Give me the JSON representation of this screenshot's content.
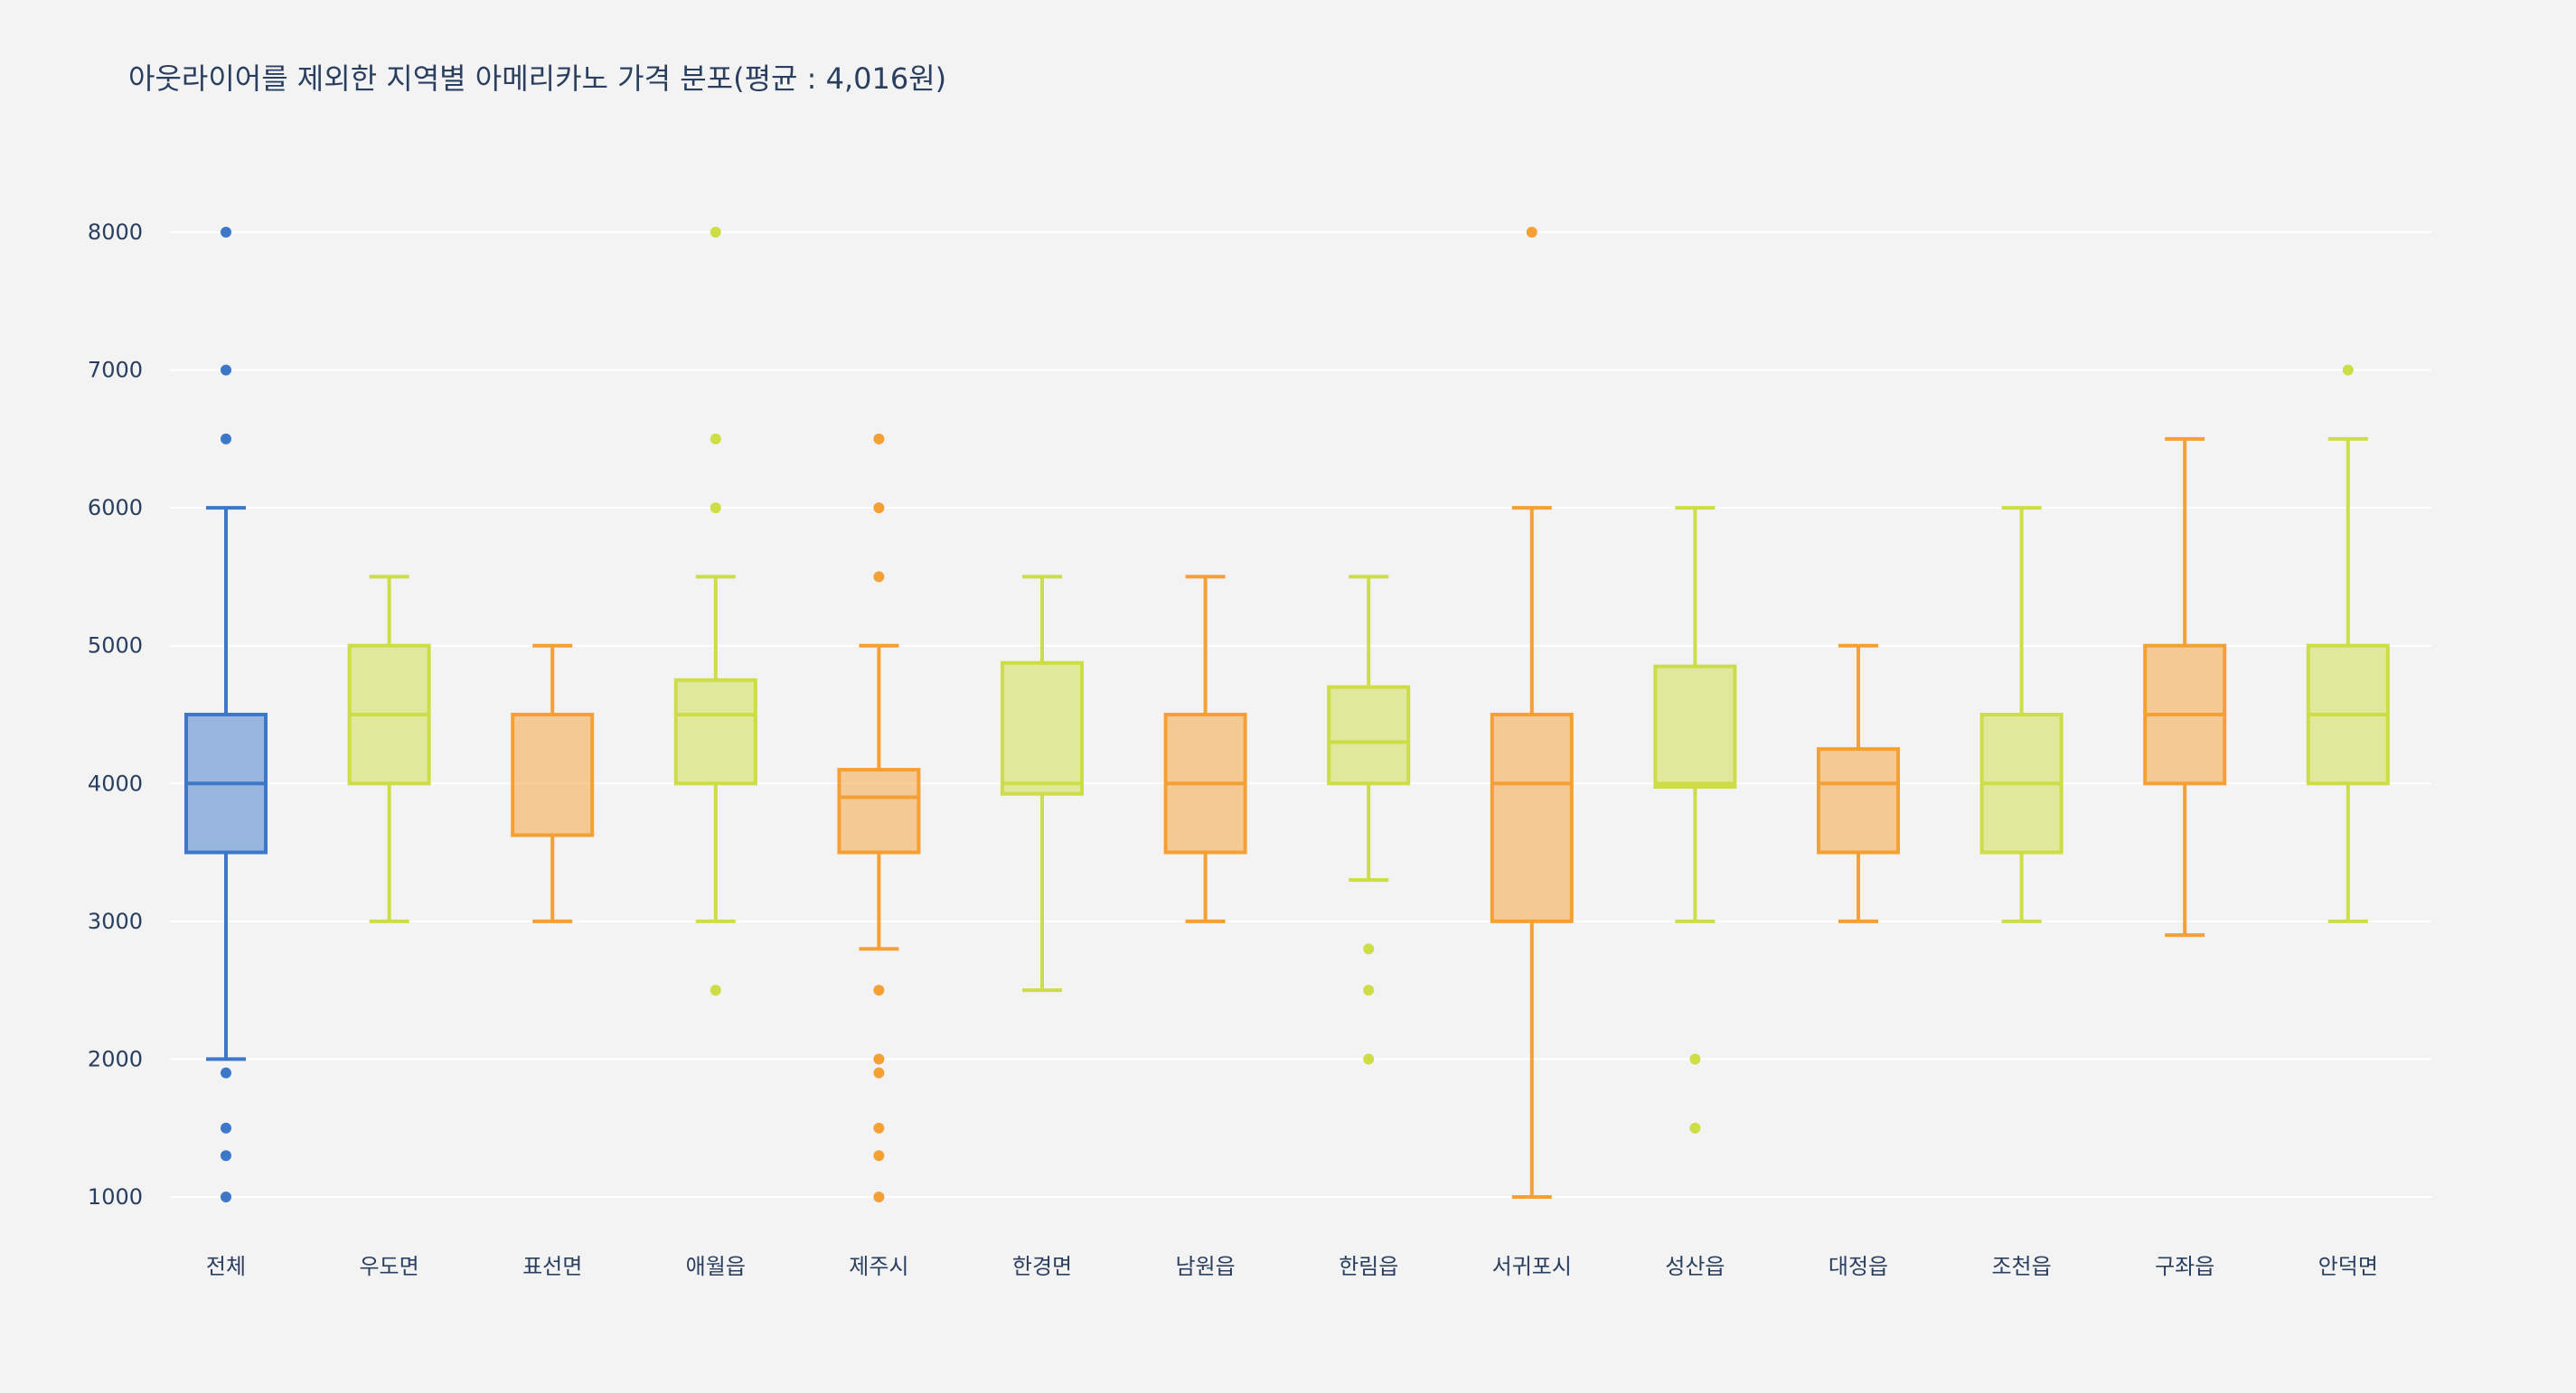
{
  "chart_data": {
    "type": "box",
    "title": "아웃라이어를 제외한 지역별 아메리카노 가격 분포(평균 : 4,016원)",
    "xlabel": "",
    "ylabel": "",
    "ylim": [
      1000,
      8000
    ],
    "yticks": [
      1000,
      2000,
      3000,
      4000,
      5000,
      6000,
      7000,
      8000
    ],
    "grid": true,
    "legend": "none",
    "colors": {
      "blue": "#3d78c8",
      "orange": "#f5a035",
      "lime": "#cddd45"
    },
    "categories": [
      "전체",
      "우도면",
      "표선면",
      "애월읍",
      "제주시",
      "한경면",
      "남원읍",
      "한림읍",
      "서귀포시",
      "성산읍",
      "대정읍",
      "조천읍",
      "구좌읍",
      "안덕면"
    ],
    "boxes": [
      {
        "category": "전체",
        "color": "blue",
        "whisker_low": 2000,
        "q1": 3500,
        "median": 4000,
        "q3": 4500,
        "whisker_high": 6000,
        "outliers": [
          8000,
          7000,
          6500,
          1900,
          1500,
          1300,
          1000
        ]
      },
      {
        "category": "우도면",
        "color": "lime",
        "whisker_low": 3000,
        "q1": 4000,
        "median": 4500,
        "q3": 5000,
        "whisker_high": 5500,
        "outliers": []
      },
      {
        "category": "표선면",
        "color": "orange",
        "whisker_low": 3000,
        "q1": 3625,
        "median": 4500,
        "q3": 4500,
        "whisker_high": 5000,
        "outliers": []
      },
      {
        "category": "애월읍",
        "color": "lime",
        "whisker_low": 3000,
        "q1": 4000,
        "median": 4500,
        "q3": 4750,
        "whisker_high": 5500,
        "outliers": [
          8000,
          6500,
          6000,
          2500
        ]
      },
      {
        "category": "제주시",
        "color": "orange",
        "whisker_low": 2800,
        "q1": 3500,
        "median": 3900,
        "q3": 4100,
        "whisker_high": 5000,
        "outliers": [
          6500,
          6000,
          5500,
          2500,
          2000,
          1900,
          1500,
          1300,
          1000
        ]
      },
      {
        "category": "한경면",
        "color": "lime",
        "whisker_low": 2500,
        "q1": 3925,
        "median": 4000,
        "q3": 4875,
        "whisker_high": 5500,
        "outliers": []
      },
      {
        "category": "남원읍",
        "color": "orange",
        "whisker_low": 3000,
        "q1": 3500,
        "median": 4000,
        "q3": 4500,
        "whisker_high": 5500,
        "outliers": []
      },
      {
        "category": "한림읍",
        "color": "lime",
        "whisker_low": 3300,
        "q1": 4000,
        "median": 4300,
        "q3": 4700,
        "whisker_high": 5500,
        "outliers": [
          2800,
          2500,
          2000
        ]
      },
      {
        "category": "서귀포시",
        "color": "orange",
        "whisker_low": 1000,
        "q1": 3000,
        "median": 4000,
        "q3": 4500,
        "whisker_high": 6000,
        "outliers": [
          8000
        ]
      },
      {
        "category": "성산읍",
        "color": "lime",
        "whisker_low": 3000,
        "q1": 3975,
        "median": 4000,
        "q3": 4850,
        "whisker_high": 6000,
        "outliers": [
          2000,
          1500
        ]
      },
      {
        "category": "대정읍",
        "color": "orange",
        "whisker_low": 3000,
        "q1": 3500,
        "median": 4000,
        "q3": 4250,
        "whisker_high": 5000,
        "outliers": []
      },
      {
        "category": "조천읍",
        "color": "lime",
        "whisker_low": 3000,
        "q1": 3500,
        "median": 4000,
        "q3": 4500,
        "whisker_high": 6000,
        "outliers": []
      },
      {
        "category": "구좌읍",
        "color": "orange",
        "whisker_low": 2900,
        "q1": 4000,
        "median": 4500,
        "q3": 5000,
        "whisker_high": 6500,
        "outliers": []
      },
      {
        "category": "안덕면",
        "color": "lime",
        "whisker_low": 3000,
        "q1": 4000,
        "median": 4500,
        "q3": 5000,
        "whisker_high": 6500,
        "outliers": [
          7000
        ]
      }
    ]
  }
}
